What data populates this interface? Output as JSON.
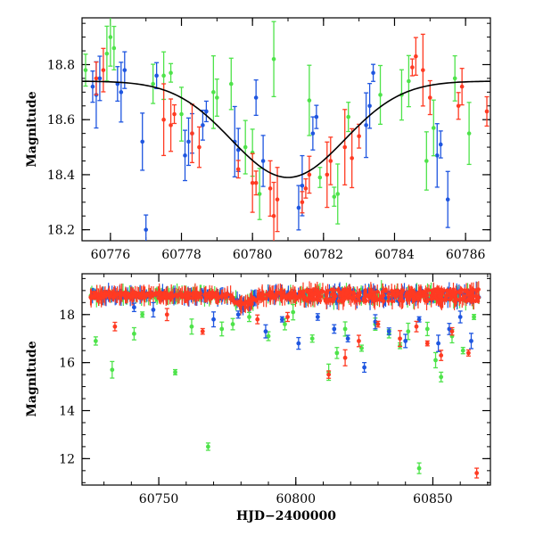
{
  "colors": {
    "blue": "#1f56e0",
    "green": "#4ee34a",
    "red": "#ff3a22",
    "model": "#000000"
  },
  "chart_data": [
    {
      "type": "scatter",
      "panel": "top",
      "title": "",
      "xlabel": "",
      "ylabel": "Magnitude",
      "xlim": [
        60775.2,
        60786.7
      ],
      "ylim": [
        18.97,
        18.16
      ],
      "y_inverted": true,
      "xticks": [
        60776,
        60778,
        60780,
        60782,
        60784,
        60786
      ],
      "xtick_labels": [
        "60776",
        "60778",
        "60780",
        "60782",
        "60784",
        "60786"
      ],
      "yticks": [
        18.2,
        18.4,
        18.6,
        18.8
      ],
      "ytick_labels": [
        "18.2",
        "18.4",
        "18.6",
        "18.8"
      ],
      "grid": false,
      "legend": "none",
      "series": [
        {
          "color": "blue",
          "error_bars": true,
          "x": [
            60775.5,
            60775.6,
            60775.7,
            60776.2,
            60776.3,
            60776.4,
            60776.9,
            60777.0,
            60777.3,
            60778.1,
            60778.2,
            60778.3,
            60778.6,
            60778.7,
            60779.5,
            60779.6,
            60780.1,
            60780.3,
            60781.3,
            60781.4,
            60781.7,
            60781.8,
            60783.2,
            60783.3,
            60783.4,
            60785.2,
            60785.3,
            60785.5
          ],
          "y": [
            18.72,
            18.69,
            18.75,
            18.73,
            18.7,
            18.78,
            18.52,
            18.2,
            18.76,
            18.47,
            18.52,
            18.55,
            18.58,
            18.63,
            18.52,
            18.49,
            18.68,
            18.45,
            18.28,
            18.36,
            18.55,
            18.61,
            18.58,
            18.65,
            18.77,
            18.47,
            18.51,
            18.31
          ]
        },
        {
          "color": "green",
          "error_bars": true,
          "x": [
            60775.3,
            60775.9,
            60776.0,
            60776.1,
            60777.2,
            60777.5,
            60777.7,
            60778.0,
            60778.9,
            60779.0,
            60779.4,
            60779.8,
            60780.0,
            60780.2,
            60780.6,
            60781.6,
            60781.9,
            60782.3,
            60782.4,
            60782.7,
            60783.6,
            60784.2,
            60784.4,
            60784.9,
            60785.1,
            60785.7,
            60786.1
          ],
          "y": [
            18.78,
            18.84,
            18.9,
            18.86,
            18.73,
            18.76,
            18.77,
            18.62,
            18.7,
            18.68,
            18.73,
            18.5,
            18.48,
            18.33,
            18.82,
            18.67,
            18.39,
            18.32,
            18.33,
            18.61,
            18.69,
            18.69,
            18.74,
            18.45,
            18.57,
            18.75,
            18.55
          ]
        },
        {
          "color": "red",
          "error_bars": true,
          "x": [
            60775.6,
            60775.8,
            60777.5,
            60777.7,
            60777.8,
            60778.3,
            60778.5,
            60779.6,
            60780.0,
            60780.1,
            60780.5,
            60780.6,
            60780.7,
            60781.4,
            60781.5,
            60781.6,
            60782.1,
            60782.2,
            60782.6,
            60782.8,
            60783.0,
            60784.5,
            60784.6,
            60784.8,
            60785.0,
            60785.8,
            60785.9,
            60786.6
          ],
          "y": [
            18.75,
            18.78,
            18.6,
            18.58,
            18.62,
            18.55,
            18.5,
            18.42,
            18.37,
            18.37,
            18.35,
            18.25,
            18.31,
            18.3,
            18.35,
            18.4,
            18.4,
            18.45,
            18.5,
            18.46,
            18.54,
            18.79,
            18.83,
            18.78,
            18.68,
            18.65,
            18.72,
            18.63
          ]
        }
      ],
      "model_curve": {
        "type": "gaussian",
        "baseline": 18.74,
        "peak": 18.39,
        "center": 60781.0,
        "sigma": 1.6
      }
    },
    {
      "type": "scatter",
      "panel": "bottom",
      "title": "",
      "xlabel": "HJD−2400000",
      "ylabel": "Magnitude",
      "xlim": [
        60722,
        60871
      ],
      "ylim": [
        19.7,
        10.9
      ],
      "y_inverted": true,
      "xticks": [
        60750,
        60800,
        60850
      ],
      "xtick_labels": [
        "60750",
        "60800",
        "60850"
      ],
      "yticks": [
        12,
        14,
        16,
        18
      ],
      "ytick_labels": [
        "12",
        "14",
        "16",
        "18"
      ],
      "grid": false,
      "legend": "none",
      "series": [
        {
          "color": "green",
          "error_bars": true,
          "x": [
            60727,
            60733,
            60741,
            60744,
            60756,
            60762,
            60768,
            60773,
            60777,
            60783,
            60790,
            60796,
            60799,
            60806,
            60812,
            60815,
            60818,
            60824,
            60829,
            60834,
            60838,
            60841,
            60845,
            60848,
            60851,
            60853,
            60857,
            60861,
            60865
          ],
          "y": [
            16.9,
            15.7,
            17.2,
            18.0,
            15.6,
            17.5,
            12.5,
            17.4,
            17.6,
            17.9,
            17.1,
            17.6,
            18.1,
            17.0,
            15.6,
            16.4,
            17.4,
            16.6,
            17.6,
            17.2,
            16.7,
            17.3,
            11.6,
            17.4,
            16.1,
            15.4,
            17.1,
            16.5,
            17.9
          ]
        },
        {
          "color": "blue",
          "error_bars": true,
          "x": [
            60741,
            60748,
            60770,
            60779,
            60789,
            60795,
            60801,
            60808,
            60814,
            60819,
            60825,
            60829,
            60834,
            60840,
            60845,
            60852,
            60856,
            60860,
            60864
          ],
          "y": [
            18.3,
            18.2,
            17.8,
            18.0,
            17.3,
            17.8,
            16.8,
            17.9,
            17.4,
            17.0,
            15.8,
            17.7,
            17.3,
            16.9,
            17.8,
            16.8,
            17.4,
            17.9,
            16.9
          ]
        },
        {
          "color": "red",
          "error_bars": true,
          "x": [
            60734,
            60753,
            60766,
            60786,
            60797,
            60812,
            60818,
            60823,
            60830,
            60838,
            60844,
            60848,
            60853,
            60857,
            60863,
            60866
          ],
          "y": [
            17.5,
            18.0,
            17.3,
            17.8,
            17.9,
            15.5,
            16.2,
            16.9,
            17.6,
            17.0,
            17.5,
            16.8,
            16.3,
            17.3,
            16.4,
            11.4
          ]
        }
      ],
      "dense_band": {
        "x_range": [
          60725,
          60867
        ],
        "typical_mag": 18.8
      }
    }
  ]
}
